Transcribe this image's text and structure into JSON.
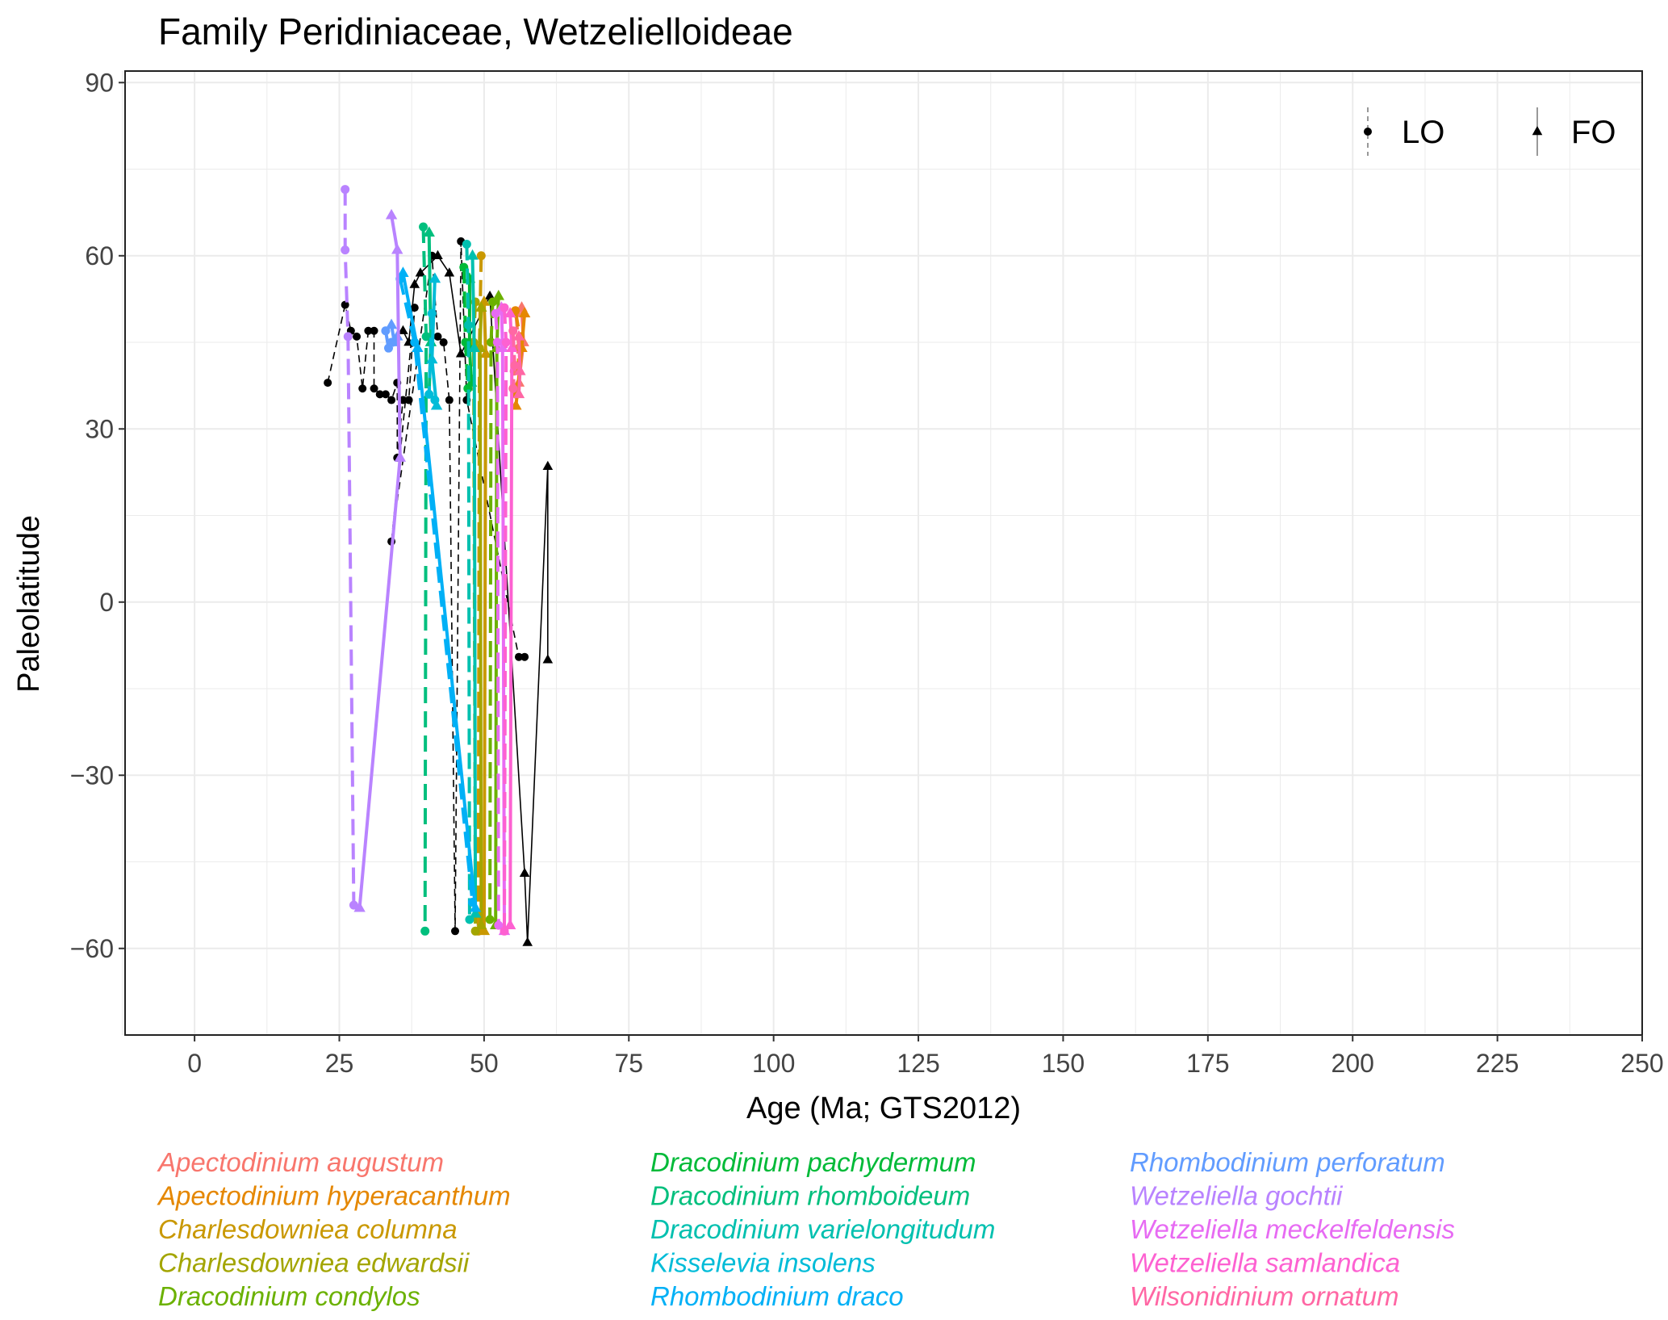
{
  "chart_data": {
    "type": "line",
    "title": "Family Peridiniaceae, Wetzelielloideae",
    "xlabel": "Age (Ma; GTS2012)",
    "ylabel": "Paleolatitude",
    "xlim": [
      -12,
      250
    ],
    "ylim": [
      -75,
      92
    ],
    "xticks": [
      0,
      25,
      50,
      75,
      100,
      125,
      150,
      175,
      200,
      225,
      250
    ],
    "xtick_labels": [
      "0",
      "25",
      "50",
      "75",
      "100",
      "125",
      "150",
      "175",
      "200",
      "225",
      "250"
    ],
    "yticks": [
      90,
      60,
      30,
      0,
      -30,
      -60
    ],
    "ytick_labels": [
      "90",
      "60",
      "30",
      "0",
      "−30",
      "−60"
    ],
    "grid": true,
    "point_legend": [
      {
        "label": "LO",
        "shape": "circle",
        "line": "dashed"
      },
      {
        "label": "FO",
        "shape": "triangle",
        "line": "solid"
      }
    ],
    "series": [
      {
        "name": "Apectodinium augustum",
        "color": "#f8766d",
        "lo": [
          [
            55.5,
            50
          ],
          [
            56,
            44
          ],
          [
            55.2,
            40
          ]
        ],
        "fo": [
          [
            56.5,
            51
          ],
          [
            56.8,
            45
          ],
          [
            56,
            38
          ]
        ]
      },
      {
        "name": "Apectodinium hyperacanthum",
        "color": "#e58700",
        "lo": [
          [
            55.4,
            50.5
          ],
          [
            56.2,
            46
          ],
          [
            55.6,
            36
          ]
        ],
        "fo": [
          [
            57,
            50
          ],
          [
            56.5,
            44
          ],
          [
            55.5,
            34
          ]
        ]
      },
      {
        "name": "Charlesdowniea columna",
        "color": "#c99800",
        "lo": [
          [
            49.5,
            60
          ],
          [
            49.2,
            44
          ],
          [
            49,
            -57
          ]
        ],
        "fo": [
          [
            50,
            52
          ],
          [
            50.3,
            43
          ],
          [
            50,
            -57
          ]
        ]
      },
      {
        "name": "Charlesdowniea edwardsii",
        "color": "#a3a500",
        "lo": [
          [
            48.5,
            52
          ],
          [
            48.2,
            45
          ],
          [
            48.5,
            -57
          ]
        ],
        "fo": [
          [
            49.5,
            51
          ],
          [
            49.3,
            44
          ],
          [
            49.5,
            -56
          ]
        ]
      },
      {
        "name": "Dracodinium condylos",
        "color": "#6bb100",
        "lo": [
          [
            51.5,
            52
          ],
          [
            51.2,
            45
          ],
          [
            51,
            -55
          ]
        ],
        "fo": [
          [
            52.5,
            53
          ],
          [
            52.2,
            44
          ],
          [
            52,
            -56
          ]
        ]
      },
      {
        "name": "Dracodinium pachydermum",
        "color": "#00ba38",
        "lo": [
          [
            46.5,
            58
          ],
          [
            46.8,
            45
          ],
          [
            47.2,
            37
          ]
        ],
        "fo": [
          [
            47.5,
            56
          ],
          [
            47.5,
            44
          ],
          [
            47.8,
            38
          ]
        ]
      },
      {
        "name": "Dracodinium rhomboideum",
        "color": "#00bf7d",
        "lo": [
          [
            39.5,
            65
          ],
          [
            40,
            46
          ],
          [
            39.8,
            -57
          ]
        ],
        "fo": [
          [
            40.5,
            64
          ],
          [
            40.8,
            45
          ],
          [
            40.5,
            36
          ]
        ]
      },
      {
        "name": "Dracodinium varielongitudum",
        "color": "#00c0af",
        "lo": [
          [
            47,
            62
          ],
          [
            47.3,
            48
          ],
          [
            47.5,
            -55
          ]
        ],
        "fo": [
          [
            48,
            60
          ],
          [
            48.3,
            44
          ],
          [
            48.5,
            -54
          ]
        ]
      },
      {
        "name": "Kisselevia insolens",
        "color": "#00bcd8",
        "lo": [
          [
            41,
            50
          ],
          [
            40.5,
            36
          ],
          [
            41.5,
            35
          ]
        ],
        "fo": [
          [
            41.5,
            56
          ],
          [
            41,
            42
          ],
          [
            41.8,
            34
          ]
        ]
      },
      {
        "name": "Rhombodinium draco",
        "color": "#00b0f6",
        "lo": [
          [
            35.5,
            56
          ],
          [
            38,
            45
          ],
          [
            48,
            -52
          ]
        ],
        "fo": [
          [
            36,
            57
          ],
          [
            38.5,
            44
          ],
          [
            48.5,
            -53
          ]
        ]
      },
      {
        "name": "Rhombodinium perforatum",
        "color": "#619cff",
        "lo": [
          [
            33,
            47
          ],
          [
            33.5,
            44
          ],
          [
            34,
            45
          ]
        ],
        "fo": [
          [
            34,
            48
          ],
          [
            34.5,
            45
          ],
          [
            35,
            46
          ]
        ]
      },
      {
        "name": "Wetzeliella gochtii",
        "color": "#b983ff",
        "lo": [
          [
            26,
            71.5
          ],
          [
            26,
            61
          ],
          [
            26.5,
            46
          ],
          [
            27.5,
            -52.5
          ]
        ],
        "fo": [
          [
            34,
            67
          ],
          [
            35,
            61
          ],
          [
            35.5,
            25
          ],
          [
            28.5,
            -53
          ]
        ]
      },
      {
        "name": "Wetzeliella meckelfeldensis",
        "color": "#e76bf3",
        "lo": [
          [
            52,
            50
          ],
          [
            52.3,
            45
          ],
          [
            52.5,
            -56
          ]
        ],
        "fo": [
          [
            53,
            51
          ],
          [
            53.2,
            44
          ],
          [
            53.5,
            -57
          ]
        ]
      },
      {
        "name": "Wetzeliella samlandica",
        "color": "#fd61d1",
        "lo": [
          [
            53.5,
            51
          ],
          [
            53.8,
            45
          ],
          [
            53.5,
            -57
          ]
        ],
        "fo": [
          [
            54.5,
            50
          ],
          [
            54.8,
            44
          ],
          [
            54.5,
            -56
          ]
        ]
      },
      {
        "name": "Wilsonidinium ornatum",
        "color": "#ff67a4",
        "lo": [
          [
            55,
            47
          ],
          [
            55.3,
            41
          ],
          [
            55,
            37
          ]
        ],
        "fo": [
          [
            56,
            46
          ],
          [
            56.2,
            40
          ],
          [
            56,
            36
          ]
        ]
      }
    ],
    "other_lo": [
      [
        23,
        38
      ],
      [
        26,
        51.5
      ],
      [
        27,
        47
      ],
      [
        28,
        46
      ],
      [
        29,
        37
      ],
      [
        30,
        47
      ],
      [
        31,
        47
      ],
      [
        31,
        37
      ],
      [
        32,
        36
      ],
      [
        33,
        36
      ],
      [
        34,
        35
      ],
      [
        35,
        38
      ],
      [
        35,
        25
      ],
      [
        36,
        35
      ],
      [
        37,
        35
      ],
      [
        38,
        51
      ],
      [
        34,
        10.5
      ],
      [
        41,
        60
      ],
      [
        42,
        46
      ],
      [
        43,
        45
      ],
      [
        44,
        35
      ],
      [
        45,
        -57
      ],
      [
        46,
        62.5
      ],
      [
        47,
        35
      ],
      [
        56,
        -9.5
      ],
      [
        57,
        -9.5
      ]
    ],
    "other_fo": [
      [
        36,
        47
      ],
      [
        37,
        45
      ],
      [
        38,
        55
      ],
      [
        39,
        57
      ],
      [
        42,
        60
      ],
      [
        44,
        57
      ],
      [
        46,
        43
      ],
      [
        51,
        53
      ],
      [
        57,
        -47
      ],
      [
        57.5,
        -59
      ],
      [
        61,
        23.5
      ],
      [
        61,
        -10
      ]
    ]
  }
}
